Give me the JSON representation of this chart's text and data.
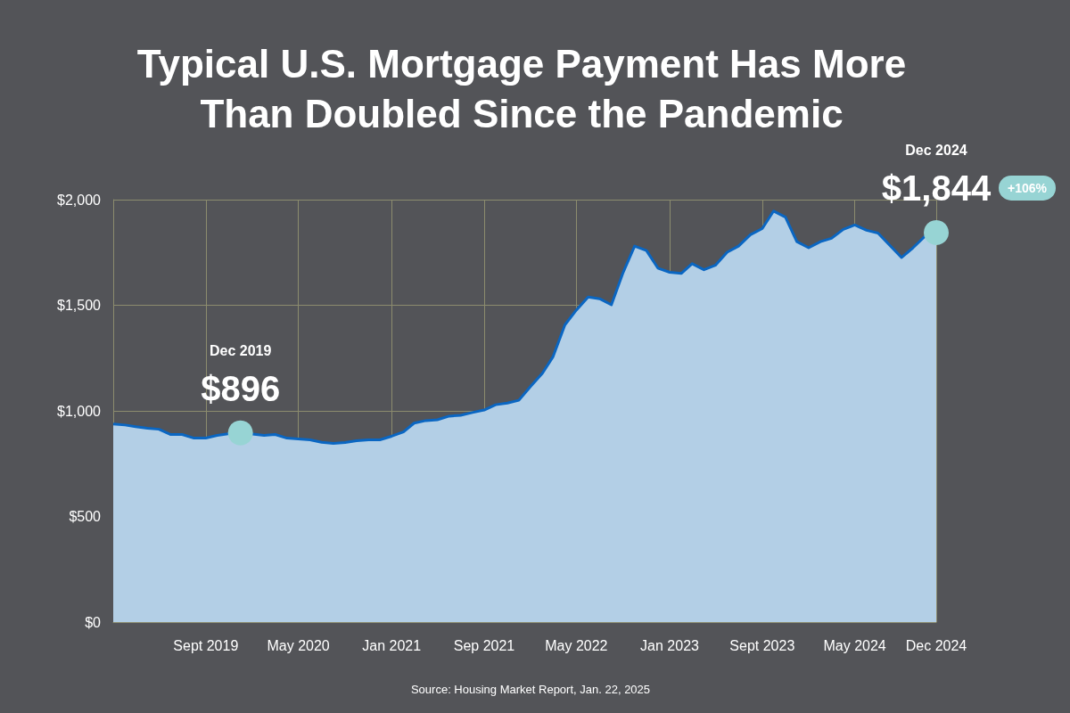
{
  "chart_data": {
    "type": "area",
    "title": "Typical U.S. Mortgage Payment Has More\nThan Doubled Since the Pandemic",
    "x": [
      "2019-01",
      "2019-02",
      "2019-03",
      "2019-04",
      "2019-05",
      "2019-06",
      "2019-07",
      "2019-08",
      "2019-09",
      "2019-10",
      "2019-11",
      "2019-12",
      "2020-01",
      "2020-02",
      "2020-03",
      "2020-04",
      "2020-05",
      "2020-06",
      "2020-07",
      "2020-08",
      "2020-09",
      "2020-10",
      "2020-11",
      "2020-12",
      "2021-01",
      "2021-02",
      "2021-03",
      "2021-04",
      "2021-05",
      "2021-06",
      "2021-07",
      "2021-08",
      "2021-09",
      "2021-10",
      "2021-11",
      "2021-12",
      "2022-01",
      "2022-02",
      "2022-03",
      "2022-04",
      "2022-05",
      "2022-06",
      "2022-07",
      "2022-08",
      "2022-09",
      "2022-10",
      "2022-11",
      "2022-12",
      "2023-01",
      "2023-02",
      "2023-03",
      "2023-04",
      "2023-05",
      "2023-06",
      "2023-07",
      "2023-08",
      "2023-09",
      "2023-10",
      "2023-11",
      "2023-12",
      "2024-01",
      "2024-02",
      "2024-03",
      "2024-04",
      "2024-05",
      "2024-06",
      "2024-07",
      "2024-08",
      "2024-09",
      "2024-10",
      "2024-11",
      "2024-12"
    ],
    "series": [
      {
        "color": "#0a66c2",
        "values": [
          938,
          933,
          925,
          918,
          913,
          888,
          888,
          871,
          871,
          884,
          892,
          896,
          890,
          884,
          888,
          871,
          867,
          863,
          851,
          846,
          850,
          859,
          863,
          863,
          880,
          900,
          942,
          954,
          958,
          975,
          979,
          992,
          1004,
          1029,
          1037,
          1050,
          1116,
          1178,
          1257,
          1407,
          1477,
          1539,
          1531,
          1502,
          1656,
          1780,
          1759,
          1676,
          1656,
          1651,
          1697,
          1668,
          1689,
          1751,
          1780,
          1834,
          1863,
          1946,
          1917,
          1801,
          1772,
          1801,
          1817,
          1859,
          1880,
          1855,
          1842,
          1784,
          1726,
          1772,
          1826,
          1844
        ]
      }
    ],
    "xlim": [
      "2019-01",
      "2024-12"
    ],
    "xticks": [
      {
        "value": "2019-09",
        "label": "Sept 2019"
      },
      {
        "value": "2020-05",
        "label": "May 2020"
      },
      {
        "value": "2021-01",
        "label": "Jan 2021"
      },
      {
        "value": "2021-09",
        "label": "Sep 2021"
      },
      {
        "value": "2022-05",
        "label": "May 2022"
      },
      {
        "value": "2023-01",
        "label": "Jan 2023"
      },
      {
        "value": "2023-09",
        "label": "Sept 2023"
      },
      {
        "value": "2024-05",
        "label": "May 2024"
      },
      {
        "value": "2024-12",
        "label": "Dec 2024"
      }
    ],
    "ylim": [
      0,
      2000
    ],
    "yticks": [
      {
        "value": 0,
        "label": "$0"
      },
      {
        "value": 500,
        "label": "$500"
      },
      {
        "value": 1000,
        "label": "$1,000"
      },
      {
        "value": 1500,
        "label": "$1,500"
      },
      {
        "value": 2000,
        "label": "$2,000"
      }
    ],
    "grid": true,
    "annotations": [
      "Dec 2019",
      {
        "text": "$896",
        "x": "2019-12",
        "y": 896
      },
      "Dec 2024",
      {
        "text": "$1,844",
        "x": "2024-12",
        "y": 1844
      },
      "+106%",
      "Source: Housing Market Report, Jan. 22, 2025"
    ]
  }
}
